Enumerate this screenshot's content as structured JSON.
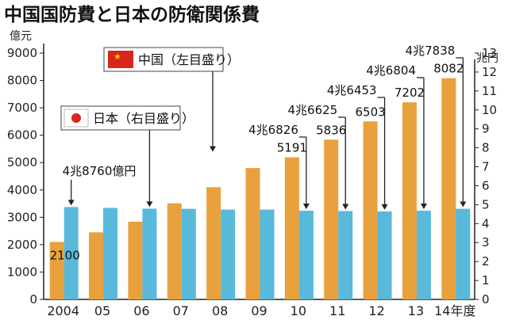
{
  "title": "中国国防費と日本の防衛関係費",
  "chart_data": {
    "type": "bar",
    "title": "中国国防費と日本の防衛関係費",
    "left_unit": "億元",
    "right_unit": "兆円",
    "categories": [
      "2004",
      "05",
      "06",
      "07",
      "08",
      "09",
      "10",
      "11",
      "12",
      "13",
      "14年度"
    ],
    "series": [
      {
        "name": "中国",
        "axis": "left",
        "note": "（左目盛り）",
        "color": "#e8a13d",
        "values": [
          2100,
          2450,
          2840,
          3510,
          4100,
          4800,
          5191,
          5836,
          6503,
          7202,
          8082
        ]
      },
      {
        "name": "日本",
        "axis": "right",
        "note": "（右目盛り）",
        "color": "#58b9db",
        "values": [
          4.876,
          4.83,
          4.79,
          4.78,
          4.74,
          4.74,
          4.6826,
          4.6625,
          4.6453,
          4.6804,
          4.7838
        ]
      }
    ],
    "left_ticks": [
      "0",
      "1000",
      "2000",
      "3000",
      "4000",
      "5000",
      "6000",
      "7000",
      "8000",
      "9000"
    ],
    "right_ticks": [
      "0",
      "1",
      "2",
      "3",
      "4",
      "5",
      "6",
      "7",
      "8",
      "9",
      "10",
      "11",
      "12",
      "13"
    ],
    "ylim_left": [
      0,
      9000
    ],
    "ylim_right": [
      0,
      13
    ],
    "data_labels": {
      "china": [
        {
          "index": 0,
          "text": "2100"
        },
        {
          "index": 6,
          "text": "5191"
        },
        {
          "index": 7,
          "text": "5836"
        },
        {
          "index": 8,
          "text": "6503"
        },
        {
          "index": 9,
          "text": "7202"
        },
        {
          "index": 10,
          "text": "8082"
        }
      ],
      "japan": [
        {
          "index": 0,
          "text": "4兆8760億円"
        },
        {
          "index": 6,
          "text": "4兆6826"
        },
        {
          "index": 7,
          "text": "4兆6625"
        },
        {
          "index": 8,
          "text": "4兆6453"
        },
        {
          "index": 9,
          "text": "4兆6804"
        },
        {
          "index": 10,
          "text": "4兆7838"
        }
      ]
    },
    "legend": {
      "china": {
        "label": "中国",
        "note": "（左目盛り）"
      },
      "japan": {
        "label": "日本",
        "note": "（右目盛り）"
      }
    },
    "grid": false
  }
}
